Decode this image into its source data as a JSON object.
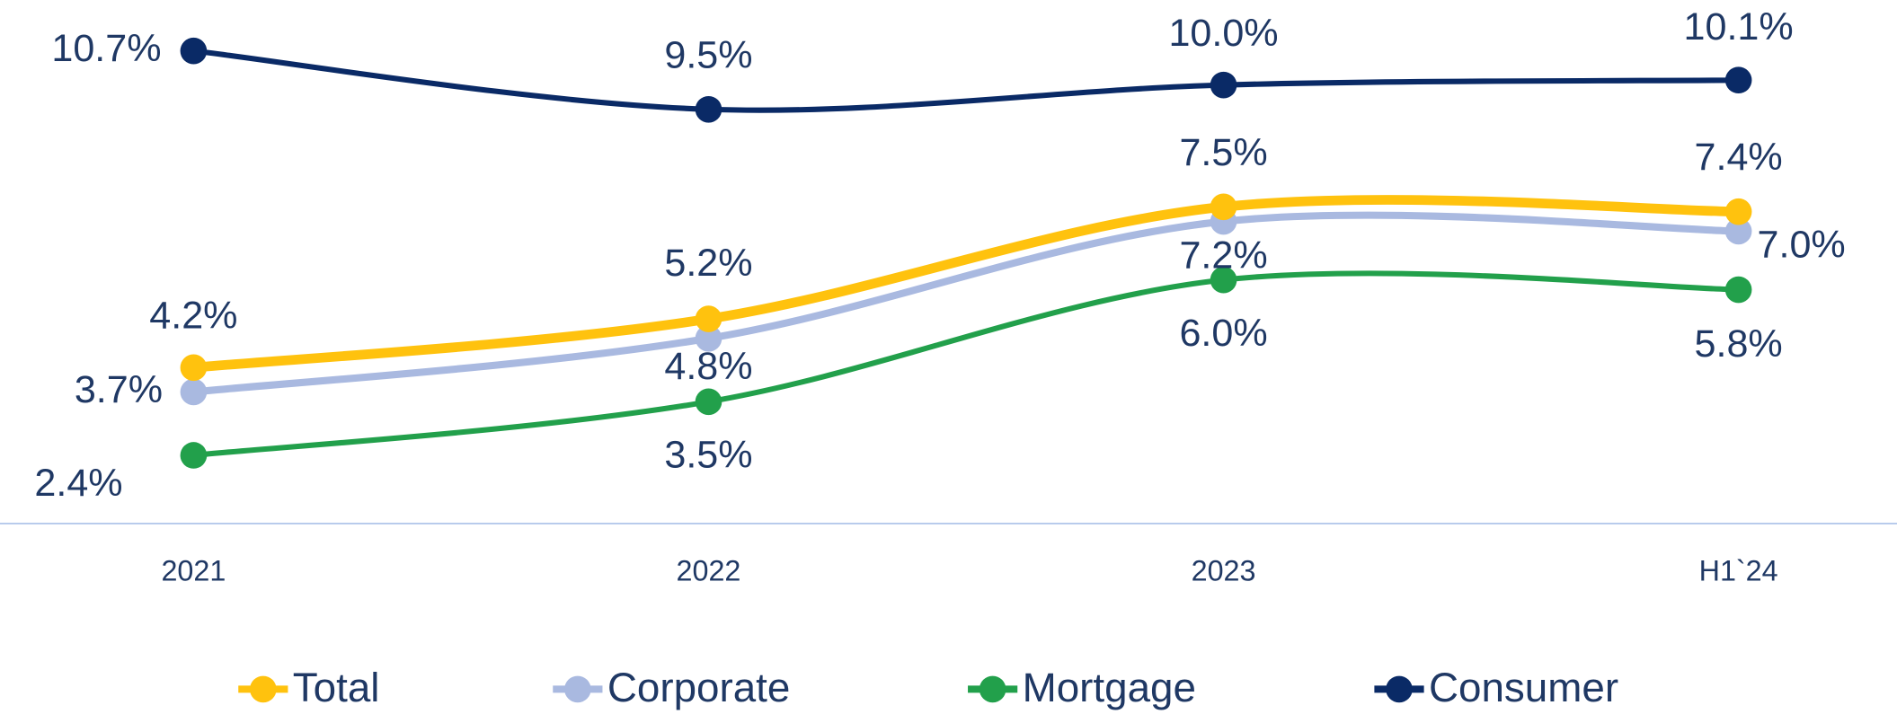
{
  "chart_data": {
    "type": "line",
    "categories": [
      "2021",
      "2022",
      "2023",
      "H1`24"
    ],
    "ylim": [
      1,
      12
    ],
    "legend": "bottom",
    "series": [
      {
        "name": "Total",
        "color": "#FFC20E",
        "values": [
          4.2,
          5.2,
          7.5,
          7.4
        ],
        "value_labels": [
          "4.2%",
          "5.2%",
          "7.5%",
          "7.4%"
        ]
      },
      {
        "name": "Corporate",
        "color": "#A9B9E0",
        "values": [
          3.7,
          4.8,
          7.2,
          7.0
        ],
        "value_labels": [
          "3.7%",
          "4.8%",
          "7.2%",
          "7.0%"
        ]
      },
      {
        "name": "Mortgage",
        "color": "#22A04B",
        "values": [
          2.4,
          3.5,
          6.0,
          5.8
        ],
        "value_labels": [
          "2.4%",
          "3.5%",
          "6.0%",
          "5.8%"
        ]
      },
      {
        "name": "Consumer",
        "color": "#0A2A66",
        "values": [
          10.7,
          9.5,
          10.0,
          10.1
        ],
        "value_labels": [
          "10.7%",
          "9.5%",
          "10.0%",
          "10.1%"
        ]
      }
    ]
  }
}
